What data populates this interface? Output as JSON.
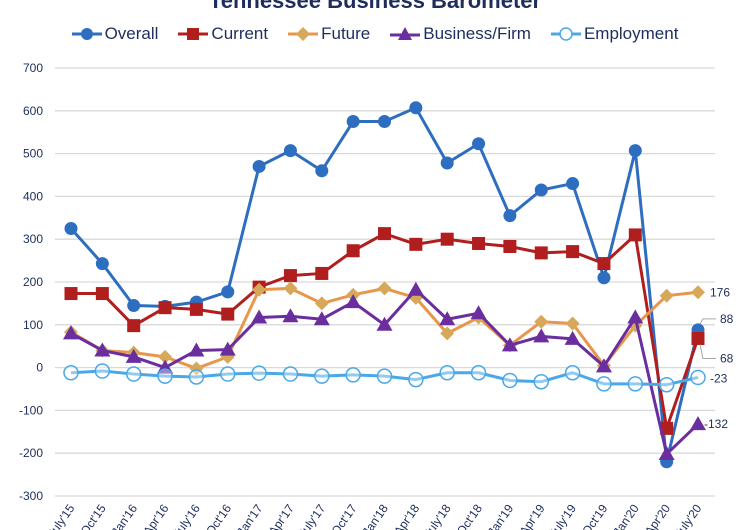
{
  "chart_data": {
    "type": "line",
    "title": "Tennessee Business Barometer",
    "xlabel": "",
    "ylabel": "",
    "ylim": [
      -300,
      700
    ],
    "yticks": [
      700,
      600,
      500,
      400,
      300,
      200,
      100,
      0,
      -100,
      -200,
      -300
    ],
    "ytick_labels": [
      "700",
      "600",
      "500",
      "400",
      "300",
      "200",
      "100",
      "0",
      "-100",
      "-200",
      "-300"
    ],
    "grid": true,
    "legend_position": "top",
    "categories": [
      "July'15",
      "Oct'15",
      "Jan'16",
      "Apr'16",
      "July'16",
      "Oct'16",
      "Jan'17",
      "Apr'17",
      "July'17",
      "Oct'17",
      "Jan'18",
      "Apr'18",
      "July'18",
      "Oct'18",
      "Jan'19",
      "Apr'19",
      "July'19",
      "Oct'19",
      "Jan'20",
      "Apr'20",
      "July'20"
    ],
    "series": [
      {
        "name": "Overall",
        "color": "#2e6ec0",
        "marker": "circle",
        "values": [
          325,
          243,
          145,
          143,
          153,
          177,
          470,
          507,
          460,
          575,
          575,
          607,
          478,
          523,
          355,
          415,
          430,
          210,
          507,
          -220,
          88
        ]
      },
      {
        "name": "Current",
        "color": "#b01e1e",
        "marker": "square",
        "values": [
          173,
          173,
          98,
          140,
          136,
          125,
          188,
          215,
          220,
          273,
          313,
          288,
          300,
          290,
          283,
          268,
          271,
          243,
          310,
          -142,
          68
        ]
      },
      {
        "name": "Future",
        "color": "#e8964a",
        "marker": "diamond",
        "values": [
          83,
          40,
          35,
          25,
          -2,
          25,
          182,
          185,
          150,
          170,
          185,
          163,
          80,
          117,
          52,
          107,
          103,
          5,
          98,
          168,
          176
        ]
      },
      {
        "name": "Business/Firm",
        "color": "#6a2e9e",
        "marker": "triangle",
        "values": [
          80,
          40,
          25,
          0,
          40,
          42,
          117,
          120,
          113,
          153,
          100,
          182,
          113,
          127,
          52,
          73,
          67,
          3,
          117,
          -202,
          -132
        ]
      },
      {
        "name": "Employment",
        "color": "#4aa8e8",
        "marker": "open-circle",
        "values": [
          -12,
          -8,
          -15,
          -20,
          -22,
          -15,
          -13,
          -15,
          -20,
          -17,
          -20,
          -28,
          -12,
          -12,
          -30,
          -33,
          -12,
          -38,
          -38,
          -40,
          -23
        ]
      }
    ],
    "data_labels": [
      {
        "series": "Future",
        "category": "July'20",
        "text": "176"
      },
      {
        "series": "Overall",
        "category": "July'20",
        "text": "88"
      },
      {
        "series": "Current",
        "category": "July'20",
        "text": "68"
      },
      {
        "series": "Employment",
        "category": "July'20",
        "text": "-23"
      },
      {
        "series": "Business/Firm",
        "category": "July'20",
        "text": "-132"
      }
    ]
  }
}
